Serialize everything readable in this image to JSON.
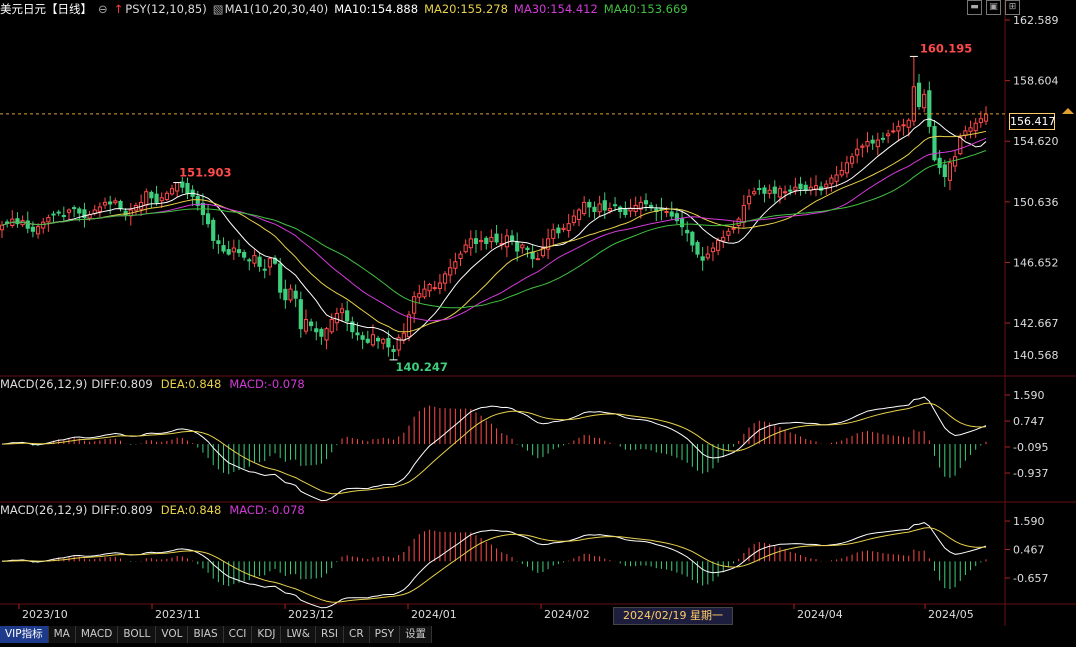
{
  "header": {
    "symbol": "美元日元",
    "period": "【日线】",
    "psy": "PSY(12,10,85)",
    "ma_label": "MA1(10,20,30,40)",
    "ma10": "MA10:154.888",
    "ma20": "MA20:155.278",
    "ma30": "MA30:154.412",
    "ma40": "MA40:153.669"
  },
  "colors": {
    "up": "#ff4a4a",
    "down": "#3ecf7c",
    "ma10": "#ffffff",
    "ma20": "#e8d14a",
    "ma30": "#d43ad9",
    "ma40": "#40c040",
    "axis": "#dddddd",
    "grid_line": "#3a1010"
  },
  "price_panel": {
    "y_ticks": [
      "162.589",
      "158.604",
      "154.620",
      "150.636",
      "146.652",
      "142.667"
    ],
    "current_price": "156.417",
    "low_axis_label": "140.568",
    "high_annotation": "160.195",
    "low_annotation": "140.247",
    "mid_annotation": "151.903"
  },
  "macd1": {
    "title": "MACD(26,12,9)",
    "diff": "DIFF:0.809",
    "dea": "DEA:0.848",
    "macd": "MACD:-0.078",
    "y_ticks": [
      "1.590",
      "0.747",
      "-0.095",
      "-0.937"
    ]
  },
  "macd2": {
    "title": "MACD(26,12,9)",
    "diff": "DIFF:0.809",
    "dea": "DEA:0.848",
    "macd": "MACD:-0.078",
    "y_ticks": [
      "1.590",
      "0.467",
      "-0.657"
    ]
  },
  "x_axis": {
    "labels": [
      "2023/10",
      "2023/11",
      "2023/12",
      "2024/01",
      "2024/02",
      "2024/04",
      "2024/05"
    ],
    "cursor_date": "2024/02/19 星期一"
  },
  "tabs": [
    "VIP指标",
    "MA",
    "MACD",
    "BOLL",
    "VOL",
    "BIAS",
    "CCI",
    "KDJ",
    "LW&",
    "RSI",
    "CR",
    "PSY",
    "设置"
  ],
  "chart_data": {
    "type": "candlestick",
    "y_range": [
      140.568,
      162.589
    ],
    "closes": [
      149.1,
      149.3,
      149.5,
      149.2,
      149.4,
      148.9,
      148.7,
      149.0,
      149.3,
      149.6,
      149.8,
      149.9,
      149.7,
      150.1,
      150.2,
      149.9,
      149.6,
      149.8,
      150.1,
      150.3,
      150.6,
      150.5,
      150.7,
      150.2,
      149.8,
      150.1,
      150.4,
      150.6,
      151.3,
      150.9,
      150.6,
      150.9,
      151.2,
      151.5,
      151.9,
      151.6,
      151.2,
      151.0,
      150.4,
      149.8,
      149.2,
      148.1,
      147.9,
      147.4,
      147.2,
      147.6,
      147.3,
      147.0,
      146.8,
      147.1,
      146.4,
      146.2,
      146.9,
      146.6,
      144.7,
      144.2,
      144.9,
      144.3,
      142.3,
      142.9,
      142.5,
      142.1,
      141.8,
      142.3,
      142.9,
      143.3,
      143.6,
      142.8,
      142.1,
      141.9,
      141.6,
      141.4,
      141.9,
      141.5,
      141.6,
      141.1,
      140.8,
      141.7,
      142.0,
      143.2,
      144.4,
      144.6,
      144.9,
      145.2,
      145.0,
      145.3,
      145.9,
      146.3,
      146.7,
      147.2,
      147.8,
      148.2,
      147.9,
      148.1,
      147.9,
      148.3,
      148.0,
      147.9,
      148.4,
      148.1,
      147.4,
      147.8,
      147.5,
      146.9,
      146.9,
      147.6,
      148.2,
      148.8,
      148.6,
      148.9,
      149.2,
      149.7,
      150.1,
      150.6,
      150.3,
      150.0,
      150.5,
      150.1,
      150.2,
      150.4,
      150.0,
      149.8,
      150.2,
      150.4,
      150.6,
      150.5,
      150.3,
      150.0,
      150.1,
      150.0,
      149.7,
      149.4,
      149.0,
      148.6,
      147.8,
      147.2,
      146.8,
      147.2,
      147.6,
      148.1,
      148.3,
      148.7,
      148.9,
      149.5,
      150.4,
      151.0,
      151.3,
      151.5,
      151.2,
      151.4,
      151.2,
      151.5,
      151.3,
      151.4,
      151.6,
      151.5,
      151.4,
      151.6,
      151.7,
      151.4,
      151.8,
      152.2,
      152.4,
      152.7,
      153.2,
      153.6,
      154.1,
      154.3,
      154.6,
      154.5,
      154.7,
      154.8,
      155.1,
      155.3,
      155.6,
      155.7,
      156.0,
      158.2,
      156.9,
      157.7,
      155.6,
      153.4,
      152.9,
      152.3,
      153.2,
      153.6,
      154.9,
      155.3,
      155.5,
      155.8,
      156.1,
      156.4
    ],
    "annotations": [
      "160.195",
      "140.247",
      "151.903"
    ],
    "x_labels": [
      "2023/10",
      "2023/11",
      "2023/12",
      "2024/01",
      "2024/02",
      "2024/04",
      "2024/05"
    ],
    "series": [
      {
        "name": "MA10"
      },
      {
        "name": "MA20"
      },
      {
        "name": "MA30"
      },
      {
        "name": "MA40"
      }
    ]
  }
}
